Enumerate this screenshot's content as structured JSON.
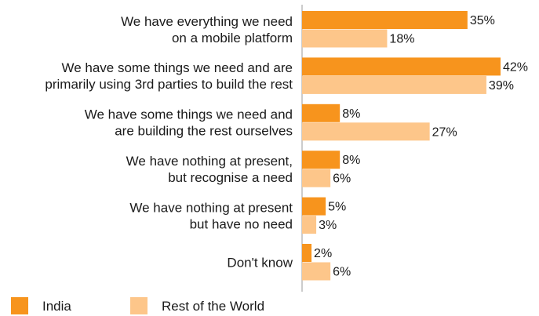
{
  "chart_data": {
    "type": "bar",
    "orientation": "horizontal",
    "categories": [
      [
        "We have everything we need",
        "on a mobile platform"
      ],
      [
        "We have some things we need and are",
        "primarily using 3rd parties to build the rest"
      ],
      [
        "We have some things we need and",
        "are building the rest ourselves"
      ],
      [
        "We have nothing at present,",
        "but recognise a need"
      ],
      [
        "We have nothing at present",
        "but have no need"
      ],
      [
        "Don't know"
      ]
    ],
    "series": [
      {
        "name": "India",
        "values": [
          35,
          42,
          8,
          8,
          5,
          2
        ],
        "labels": [
          "35%",
          "42%",
          "8%",
          "8%",
          "5%",
          "2%"
        ],
        "color": "#F7941D"
      },
      {
        "name": "Rest of the World",
        "values": [
          18,
          39,
          27,
          6,
          3,
          6
        ],
        "labels": [
          "18%",
          "39%",
          "27%",
          "6%",
          "3%",
          "6%"
        ],
        "color": "#FDC68A"
      }
    ],
    "title": "",
    "xlabel": "",
    "ylabel": "",
    "xlim": [
      0,
      50
    ],
    "grid": false,
    "legend_position": "bottom-left",
    "value_unit": "%"
  }
}
